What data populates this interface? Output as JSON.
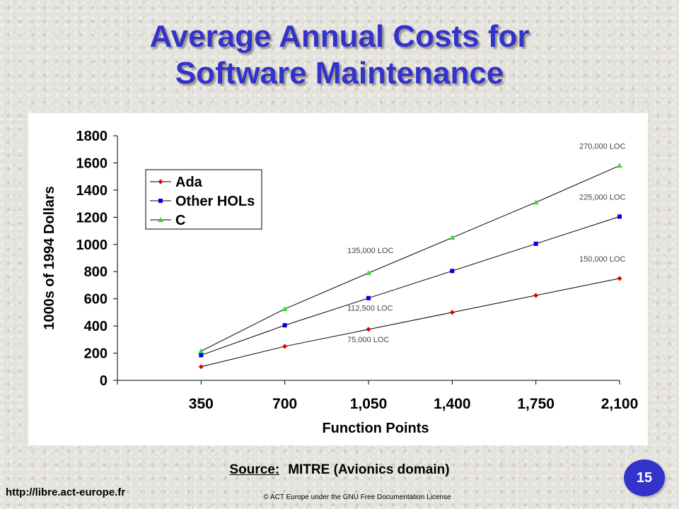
{
  "slide": {
    "title_line1": "Average Annual Costs for",
    "title_line2": "Software Maintenance",
    "source_label": "Source:",
    "source_text": "MITRE (Avionics domain)",
    "url": "http://libre.act-europe.fr",
    "copyright": "© ACT Europe under the GNU Free Documentation License",
    "page_number": "15",
    "colors": {
      "title": "#3333cc",
      "badge": "#3333cc"
    }
  },
  "chart_data": {
    "type": "line",
    "title": "",
    "xlabel": "Function Points",
    "ylabel": "1000s of 1994 Dollars",
    "categories": [
      "350",
      "700",
      "1,050",
      "1,400",
      "1,750",
      "2,100"
    ],
    "x": [
      350,
      700,
      1050,
      1400,
      1750,
      2100
    ],
    "ylim": [
      0,
      1800
    ],
    "yticks": [
      0,
      200,
      400,
      600,
      800,
      1000,
      1200,
      1400,
      1600,
      1800
    ],
    "grid": false,
    "legend": "upper-left",
    "series": [
      {
        "name": "Ada",
        "color": "#dd0000",
        "marker": "diamond",
        "values": [
          100,
          250,
          375,
          500,
          625,
          750
        ]
      },
      {
        "name": "Other HOLs",
        "color": "#0000dd",
        "marker": "square",
        "values": [
          185,
          405,
          605,
          805,
          1005,
          1205
        ]
      },
      {
        "name": "C",
        "color": "#33dd33",
        "marker": "triangle",
        "values": [
          215,
          525,
          790,
          1050,
          1310,
          1580
        ]
      }
    ],
    "annotations": [
      {
        "text": "270,000 LOC",
        "x": 2100,
        "y": 1580
      },
      {
        "text": "225,000 LOC",
        "x": 2100,
        "y": 1205
      },
      {
        "text": "150,000 LOC",
        "x": 2100,
        "y": 750
      },
      {
        "text": "135,000 LOC",
        "x": 1050,
        "y": 790
      },
      {
        "text": "112,500 LOC",
        "x": 1050,
        "y": 605
      },
      {
        "text": "75,000 LOC",
        "x": 1050,
        "y": 375
      }
    ]
  }
}
